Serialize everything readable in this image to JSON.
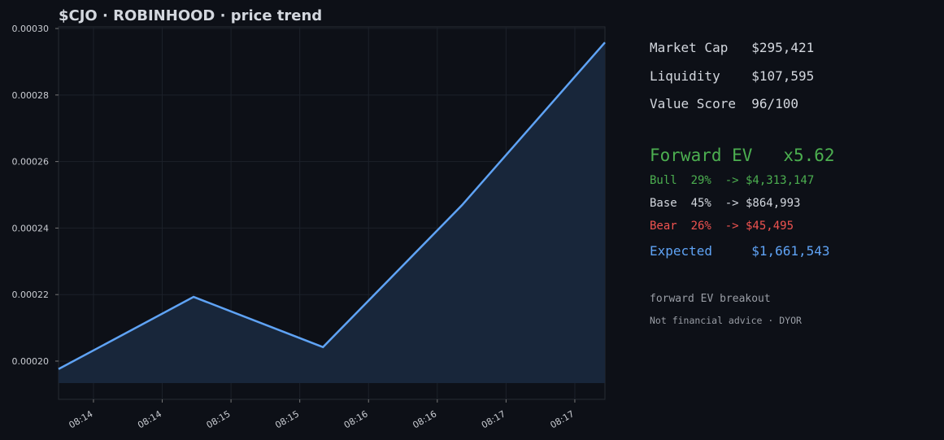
{
  "chart_data": {
    "type": "line",
    "title": "$CJO · ROBINHOOD  ·  price trend",
    "x": [
      493.746,
      494.728,
      495.669,
      496.68,
      497.719
    ],
    "series": [
      {
        "name": "price",
        "color": "#5fa3f5",
        "values": [
          0.0001976,
          0.0002193,
          0.0002042,
          0.0002469,
          0.0002958
        ]
      }
    ],
    "fill_color": "#18263a",
    "xlim": [
      493.746,
      497.719
    ],
    "xticks": [
      {
        "value": 494,
        "label": "08:14"
      },
      {
        "value": 494.5,
        "label": "08:14"
      },
      {
        "value": 495,
        "label": "08:15"
      },
      {
        "value": 495.5,
        "label": "08:15"
      },
      {
        "value": 496,
        "label": "08:16"
      },
      {
        "value": 496.5,
        "label": "08:16"
      },
      {
        "value": 497,
        "label": "08:17"
      },
      {
        "value": 497.5,
        "label": "08:17"
      }
    ],
    "ylim": [
      0.0001885,
      0.0003005
    ],
    "yticks": [
      {
        "value": 0.0002,
        "label": "0.00020"
      },
      {
        "value": 0.00022,
        "label": "0.00022"
      },
      {
        "value": 0.00024,
        "label": "0.00024"
      },
      {
        "value": 0.00026,
        "label": "0.00026"
      },
      {
        "value": 0.00028,
        "label": "0.00028"
      },
      {
        "value": 0.0003,
        "label": "0.00030"
      }
    ],
    "grid": true
  },
  "panel": {
    "stats": [
      {
        "text": "Market Cap   $295,421",
        "color": "#d3d7de"
      },
      {
        "text": "Liquidity    $107,595",
        "color": "#d3d7de"
      },
      {
        "text": "Value Score  96/100",
        "color": "#d3d7de"
      }
    ],
    "headline": {
      "text": "Forward EV   x5.62",
      "color": "#4caf50"
    },
    "scenarios": [
      {
        "text": "Bull  29%  -> $4,313,147",
        "color": "#4caf50"
      },
      {
        "text": "Base  45%  -> $864,993",
        "color": "#d3d7de"
      },
      {
        "text": "Bear  26%  -> $45,495",
        "color": "#ef5350"
      },
      {
        "text": "Expected     $1,661,543",
        "color": "#5fa3f5"
      }
    ],
    "note": "forward EV breakout",
    "disclaimer": "Not financial advice · DYOR"
  }
}
